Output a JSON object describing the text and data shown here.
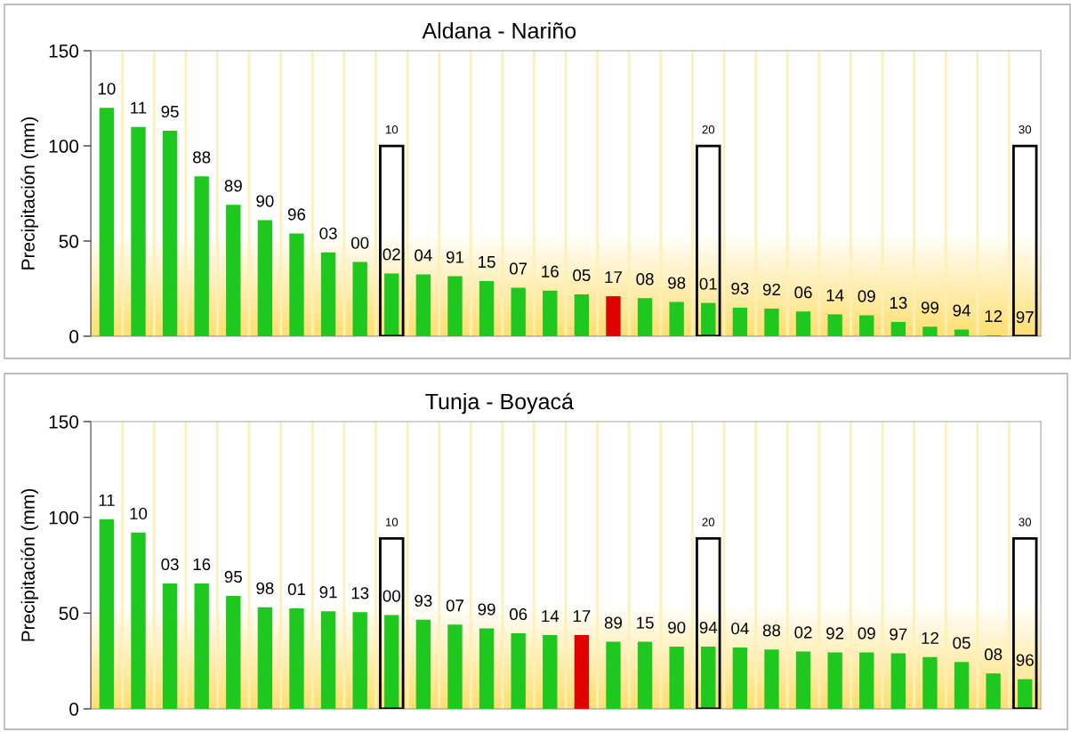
{
  "chart_data": [
    {
      "type": "bar",
      "title": "Aldana - Nariño",
      "ylabel": "Precipitación (mm)",
      "categories": [
        "10",
        "11",
        "95",
        "88",
        "89",
        "90",
        "96",
        "03",
        "00",
        "02",
        "04",
        "91",
        "15",
        "07",
        "16",
        "05",
        "17",
        "08",
        "98",
        "01",
        "93",
        "92",
        "06",
        "14",
        "09",
        "13",
        "99",
        "94",
        "12",
        "97"
      ],
      "ylim": [
        0,
        150
      ],
      "yticks": [
        0,
        50,
        100,
        150
      ],
      "grid": "x",
      "bands": [
        {
          "axis": "y",
          "from": 0,
          "to": 55,
          "color": "#ffdf70"
        }
      ],
      "annotations": [
        "10",
        "20",
        "30"
      ],
      "series": [
        {
          "colors": [
            "#1ec81e",
            "#1ec81e",
            "#1ec81e",
            "#1ec81e",
            "#1ec81e",
            "#1ec81e",
            "#1ec81e",
            "#1ec81e",
            "#1ec81e",
            "#1ec81e",
            "#1ec81e",
            "#1ec81e",
            "#1ec81e",
            "#1ec81e",
            "#1ec81e",
            "#1ec81e",
            "#e00000",
            "#1ec81e",
            "#1ec81e",
            "#1ec81e",
            "#1ec81e",
            "#1ec81e",
            "#1ec81e",
            "#1ec81e",
            "#1ec81e",
            "#1ec81e",
            "#1ec81e",
            "#1ec81e",
            "#1ec81e",
            "#1ec81e"
          ],
          "values": [
            120,
            110,
            108,
            84,
            69,
            61,
            54,
            44,
            39,
            33,
            32.5,
            31.5,
            29,
            25.5,
            24,
            22,
            21,
            20,
            18,
            17.5,
            15,
            14.5,
            13,
            11.5,
            11,
            7.5,
            5,
            3.5,
            0.5,
            0
          ]
        },
        {
          "type": "bar",
          "color": "#000000",
          "values": [
            null,
            null,
            null,
            null,
            null,
            null,
            null,
            null,
            null,
            100,
            null,
            null,
            null,
            null,
            null,
            null,
            null,
            null,
            null,
            100,
            null,
            null,
            null,
            null,
            null,
            null,
            null,
            null,
            null,
            100
          ]
        }
      ]
    },
    {
      "type": "bar",
      "title": "Tunja - Boyacá",
      "ylabel": "Precipitación (mm)",
      "categories": [
        "11",
        "10",
        "03",
        "16",
        "95",
        "98",
        "01",
        "91",
        "13",
        "00",
        "93",
        "07",
        "99",
        "06",
        "14",
        "17",
        "89",
        "15",
        "90",
        "94",
        "04",
        "88",
        "02",
        "92",
        "09",
        "97",
        "12",
        "05",
        "08",
        "96"
      ],
      "ylim": [
        0,
        150
      ],
      "yticks": [
        0,
        50,
        100,
        150
      ],
      "grid": "x",
      "bands": [
        {
          "axis": "y",
          "from": 0,
          "to": 55,
          "color": "#ffdf70"
        }
      ],
      "annotations": [
        "10",
        "20",
        "30"
      ],
      "series": [
        {
          "colors": [
            "#1ec81e",
            "#1ec81e",
            "#1ec81e",
            "#1ec81e",
            "#1ec81e",
            "#1ec81e",
            "#1ec81e",
            "#1ec81e",
            "#1ec81e",
            "#1ec81e",
            "#1ec81e",
            "#1ec81e",
            "#1ec81e",
            "#1ec81e",
            "#1ec81e",
            "#e00000",
            "#1ec81e",
            "#1ec81e",
            "#1ec81e",
            "#1ec81e",
            "#1ec81e",
            "#1ec81e",
            "#1ec81e",
            "#1ec81e",
            "#1ec81e",
            "#1ec81e",
            "#1ec81e",
            "#1ec81e",
            "#1ec81e",
            "#1ec81e"
          ],
          "values": [
            99,
            92,
            65.5,
            65.5,
            59,
            53,
            52.5,
            51,
            50.5,
            49,
            46.5,
            44,
            42,
            39.5,
            38.5,
            38.5,
            35,
            35,
            32.5,
            32.5,
            32,
            31,
            30,
            29.5,
            29.5,
            29,
            27,
            24.5,
            18.5,
            15.5
          ]
        },
        {
          "type": "bar",
          "color": "#000000",
          "values": [
            null,
            null,
            null,
            null,
            null,
            null,
            null,
            null,
            null,
            89,
            null,
            null,
            null,
            null,
            null,
            null,
            null,
            null,
            null,
            89,
            null,
            null,
            null,
            null,
            null,
            null,
            null,
            null,
            null,
            89
          ]
        }
      ]
    }
  ]
}
